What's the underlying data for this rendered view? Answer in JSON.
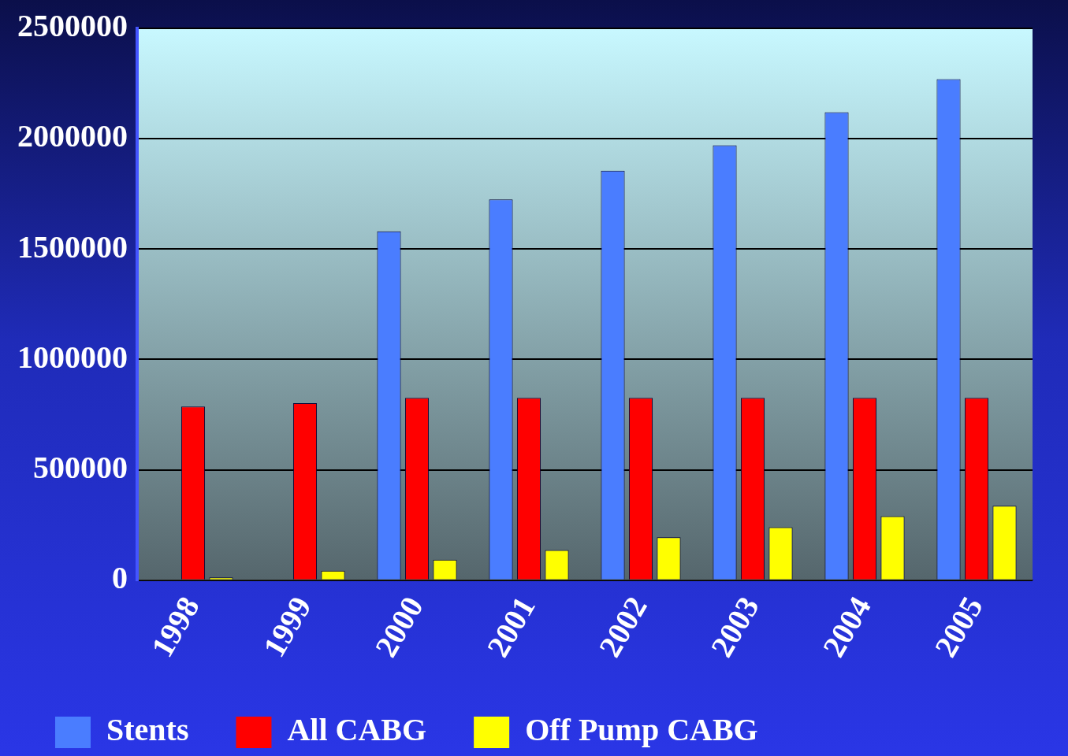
{
  "chart_data": {
    "type": "bar",
    "categories": [
      "1998",
      "1999",
      "2000",
      "2001",
      "2002",
      "2003",
      "2004",
      "2005"
    ],
    "series": [
      {
        "name": "Stents",
        "color": "#4a7dff",
        "values": [
          0,
          0,
          1580000,
          1725000,
          1855000,
          1970000,
          2120000,
          2270000
        ]
      },
      {
        "name": "All CABG",
        "color": "#ff0000",
        "values": [
          787000,
          802000,
          826000,
          826000,
          826000,
          826000,
          826000,
          826000
        ]
      },
      {
        "name": "Off Pump CABG",
        "color": "#ffff00",
        "values": [
          12000,
          43000,
          93000,
          136000,
          194000,
          240000,
          290000,
          337000
        ]
      }
    ],
    "ylim": [
      0,
      2500000
    ],
    "yticks": [
      0,
      500000,
      1000000,
      1500000,
      2000000,
      2500000
    ],
    "grid": "y",
    "legend": "bottom"
  }
}
